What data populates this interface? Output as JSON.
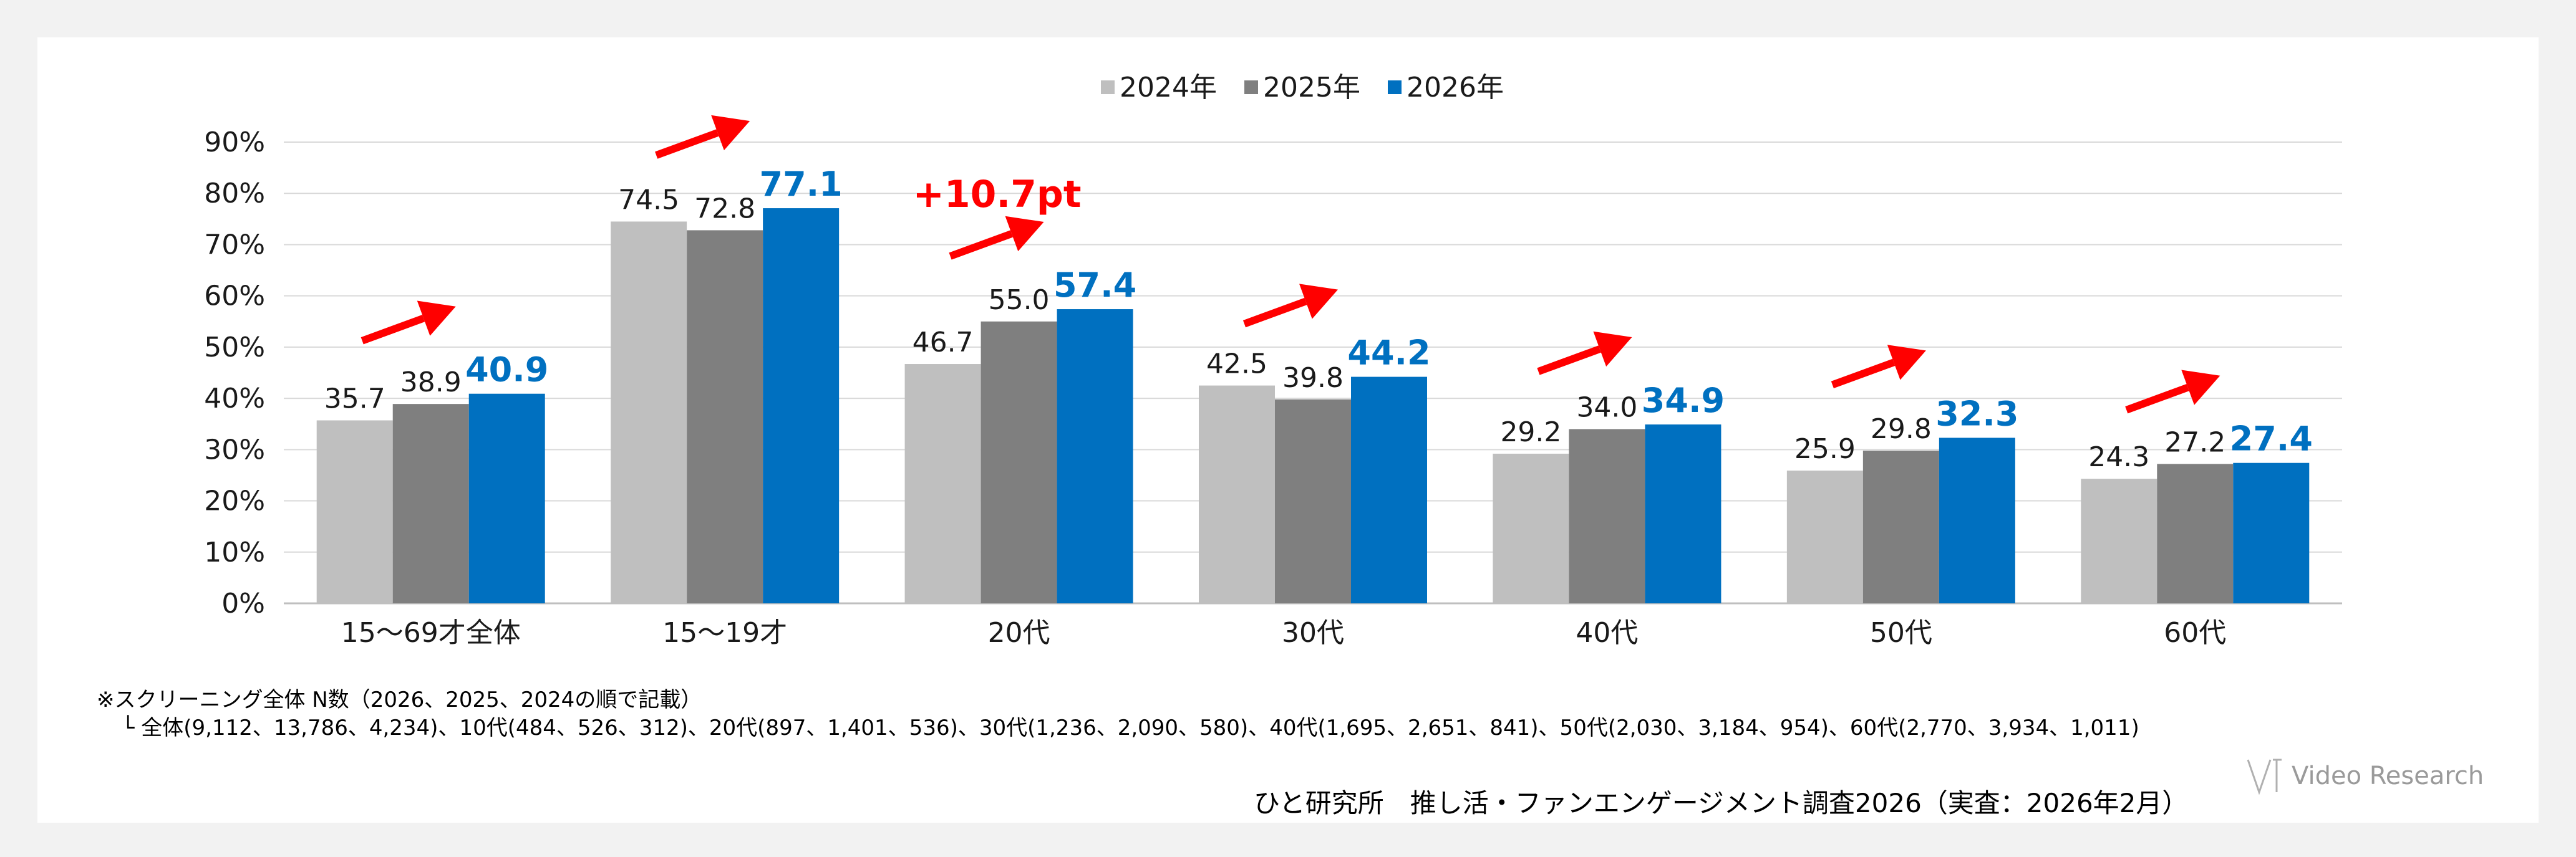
{
  "chart_data": {
    "type": "bar",
    "title": "",
    "xlabel": "",
    "ylabel": "",
    "ylim": [
      0,
      90
    ],
    "yticks": [
      "0%",
      "10%",
      "20%",
      "30%",
      "40%",
      "50%",
      "60%",
      "70%",
      "80%",
      "90%"
    ],
    "grid": true,
    "legend_position": "top-center",
    "categories": [
      "15～69才全体",
      "15～19才",
      "20代",
      "30代",
      "40代",
      "50代",
      "60代"
    ],
    "series": [
      {
        "name": "2024年",
        "color": "#bfbfbf",
        "label_color": "#1a1a1a",
        "values": [
          35.7,
          74.5,
          46.7,
          42.5,
          29.2,
          25.9,
          24.3
        ],
        "labels": [
          "35.7",
          "74.5",
          "46.7",
          "42.5",
          "29.2",
          "25.9",
          "24.3"
        ]
      },
      {
        "name": "2025年",
        "color": "#7f7f7f",
        "label_color": "#1a1a1a",
        "values": [
          38.9,
          72.8,
          55.0,
          39.8,
          34.0,
          29.8,
          27.2
        ],
        "labels": [
          "38.9",
          "72.8",
          "55.0",
          "39.8",
          "34.0",
          "29.8",
          "27.2"
        ]
      },
      {
        "name": "2026年",
        "color": "#0070c0",
        "label_color": "#0070c0",
        "values": [
          40.9,
          77.1,
          57.4,
          44.2,
          34.9,
          32.3,
          27.4
        ],
        "labels": [
          "40.9",
          "77.1",
          "57.4",
          "44.2",
          "34.9",
          "32.3",
          "27.4"
        ]
      }
    ],
    "annotations": [
      {
        "text": "+10.7pt",
        "category": "20代",
        "color": "#ff0000"
      }
    ],
    "trend_arrows": {
      "color": "#ff0000",
      "categories": [
        "15～69才全体",
        "15～19才",
        "20代",
        "30代",
        "40代",
        "50代",
        "60代"
      ]
    }
  },
  "notes": {
    "line1": "※スクリーニング全体 N数（2026、2025、2024の順で記載）",
    "line2": "└ 全体(9,112、13,786、4,234)、10代(484、526、312)、20代(897、1,401、536)、30代(1,236、2,090、580)、40代(1,695、2,651、841)、50代(2,030、3,184、954)、60代(2,770、3,934、1,011)"
  },
  "source": "ひと研究所　推し活・ファンエンゲージメント調査2026（実査：2026年2月）",
  "logo": {
    "name": "Video Research",
    "icon": "vr-logo-icon"
  }
}
